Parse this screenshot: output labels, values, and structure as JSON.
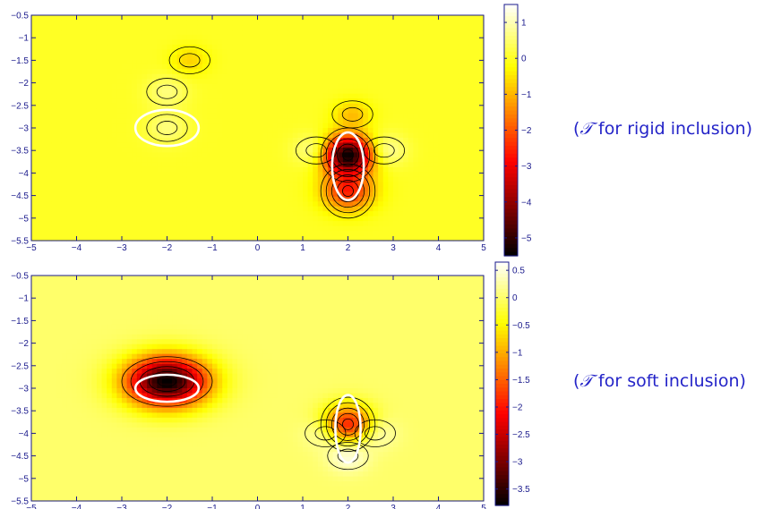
{
  "chart_data": [
    {
      "type": "heatmap",
      "title": "",
      "xlabel": "",
      "ylabel": "",
      "xlim": [
        -5,
        5
      ],
      "ylim": [
        -5.5,
        -0.5
      ],
      "x_ticks": [
        "−5",
        "−4",
        "−3",
        "−2",
        "−1",
        "0",
        "1",
        "2",
        "3",
        "4",
        "5"
      ],
      "y_ticks": [
        "−0.5",
        "−1",
        "−1.5",
        "−2",
        "−2.5",
        "−3",
        "−3.5",
        "−4",
        "−4.5",
        "−5",
        "−5.5"
      ],
      "colorbar": {
        "range": [
          -5.5,
          1.5
        ],
        "ticks": [
          1,
          0,
          -1,
          -2,
          -3,
          -4,
          -5
        ],
        "tick_labels": [
          "1",
          "0",
          "−1",
          "−2",
          "−3",
          "−4",
          "−5"
        ]
      },
      "colormap": "hot",
      "features": [
        {
          "kind": "peak",
          "x": 2.0,
          "y": -3.6,
          "value": -5.5
        },
        {
          "kind": "peak",
          "x": 2.0,
          "y": -4.4,
          "value": -2.5
        },
        {
          "kind": "ridge",
          "x": 1.3,
          "y": -3.5,
          "value": 1.0
        },
        {
          "kind": "ridge",
          "x": 2.8,
          "y": -3.5,
          "value": 1.0
        },
        {
          "kind": "ridge",
          "x": -2.0,
          "y": -3.0,
          "value": 0.6
        },
        {
          "kind": "ridge",
          "x": -2.0,
          "y": -2.2,
          "value": 0.6
        },
        {
          "kind": "trough",
          "x": 2.1,
          "y": -2.7,
          "value": -0.9
        },
        {
          "kind": "trough",
          "x": -1.5,
          "y": -1.5,
          "value": -0.7
        }
      ],
      "inclusions": [
        {
          "cx": -2.0,
          "cy": -3.0,
          "rx": 0.7,
          "ry": 0.4
        },
        {
          "cx": 2.0,
          "cy": -3.85,
          "rx": 0.35,
          "ry": 0.75
        }
      ],
      "caption": {
        "symbol": "𝒯",
        "text": " for rigid inclusion)",
        "open": "("
      }
    },
    {
      "type": "heatmap",
      "title": "",
      "xlabel": "",
      "ylabel": "",
      "xlim": [
        -5,
        5
      ],
      "ylim": [
        -5.5,
        -0.5
      ],
      "x_ticks": [
        "−5",
        "−4",
        "−3",
        "−2",
        "−1",
        "0",
        "1",
        "2",
        "3",
        "4",
        "5"
      ],
      "y_ticks": [
        "−0.5",
        "−1",
        "−1.5",
        "−2",
        "−2.5",
        "−3",
        "−3.5",
        "−4",
        "−4.5",
        "−5",
        "−5.5"
      ],
      "colorbar": {
        "range": [
          -3.8,
          0.65
        ],
        "ticks": [
          0.5,
          0,
          -0.5,
          -1,
          -1.5,
          -2,
          -2.5,
          -3,
          -3.5
        ],
        "tick_labels": [
          "0.5",
          "0",
          "−0.5",
          "−1",
          "−1.5",
          "−2",
          "−2.5",
          "−3",
          "−3.5"
        ]
      },
      "colormap": "hot",
      "features": [
        {
          "kind": "peak",
          "x": -2.0,
          "y": -2.85,
          "value": -3.8
        },
        {
          "kind": "peak",
          "x": 2.0,
          "y": -3.8,
          "value": -2.0
        },
        {
          "kind": "ridge",
          "x": 2.0,
          "y": -4.5,
          "value": 0.55
        },
        {
          "kind": "ridge",
          "x": 1.5,
          "y": -4.0,
          "value": 0.45
        },
        {
          "kind": "ridge",
          "x": 2.6,
          "y": -4.0,
          "value": 0.45
        }
      ],
      "inclusions": [
        {
          "cx": -2.0,
          "cy": -3.0,
          "rx": 0.7,
          "ry": 0.3
        },
        {
          "cx": 2.0,
          "cy": -3.9,
          "rx": 0.28,
          "ry": 0.75
        }
      ],
      "caption": {
        "symbol": "𝒯",
        "text": " for soft inclusion)",
        "open": "("
      }
    }
  ]
}
